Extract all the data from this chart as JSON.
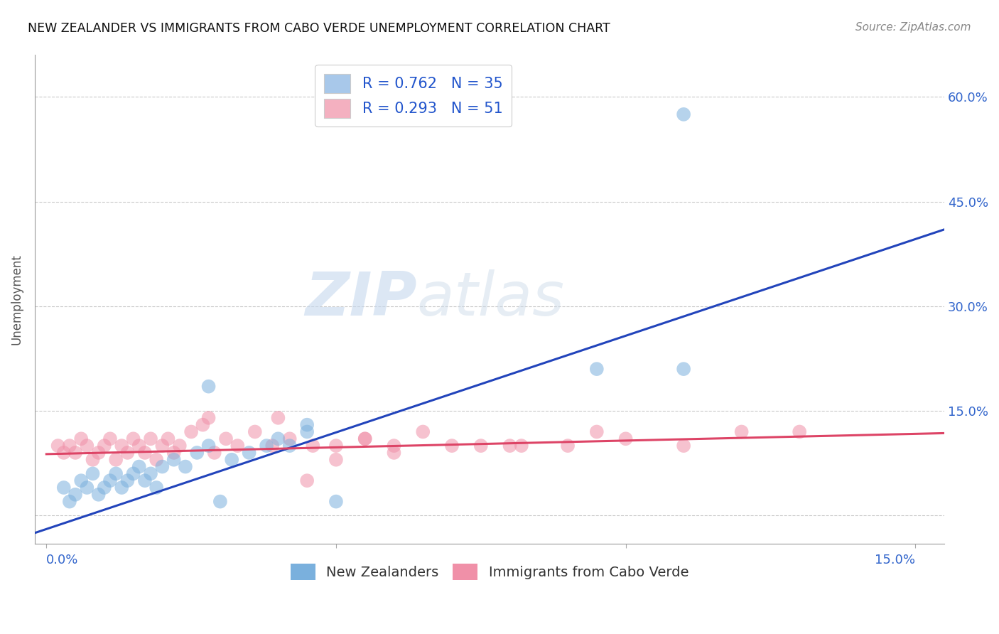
{
  "title": "NEW ZEALANDER VS IMMIGRANTS FROM CABO VERDE UNEMPLOYMENT CORRELATION CHART",
  "source": "Source: ZipAtlas.com",
  "ylabel": "Unemployment",
  "y_tick_labels": [
    "",
    "15.0%",
    "30.0%",
    "45.0%",
    "60.0%"
  ],
  "y_tick_vals": [
    0,
    0.15,
    0.3,
    0.45,
    0.6
  ],
  "xlim": [
    -0.002,
    0.155
  ],
  "ylim": [
    -0.04,
    0.66
  ],
  "watermark_zip": "ZIP",
  "watermark_atlas": "atlas",
  "legend_label1": "R = 0.762   N = 35",
  "legend_label2": "R = 0.293   N = 51",
  "legend_color1": "#a8c8ea",
  "legend_color2": "#f4b0c0",
  "scatter_color1": "#7ab0dd",
  "scatter_color2": "#f090a8",
  "line_color1": "#2244bb",
  "line_color2": "#dd4466",
  "background_color": "#ffffff",
  "nz_x": [
    0.003,
    0.004,
    0.005,
    0.006,
    0.007,
    0.008,
    0.009,
    0.01,
    0.011,
    0.012,
    0.013,
    0.014,
    0.015,
    0.016,
    0.017,
    0.018,
    0.019,
    0.02,
    0.022,
    0.024,
    0.026,
    0.028,
    0.03,
    0.032,
    0.035,
    0.038,
    0.04,
    0.042,
    0.045,
    0.05,
    0.028,
    0.045,
    0.11,
    0.11,
    0.095
  ],
  "nz_y": [
    0.04,
    0.02,
    0.03,
    0.05,
    0.04,
    0.06,
    0.03,
    0.04,
    0.05,
    0.06,
    0.04,
    0.05,
    0.06,
    0.07,
    0.05,
    0.06,
    0.04,
    0.07,
    0.08,
    0.07,
    0.09,
    0.1,
    0.02,
    0.08,
    0.09,
    0.1,
    0.11,
    0.1,
    0.13,
    0.02,
    0.185,
    0.12,
    0.575,
    0.21,
    0.21
  ],
  "cv_x": [
    0.002,
    0.003,
    0.004,
    0.005,
    0.006,
    0.007,
    0.008,
    0.009,
    0.01,
    0.011,
    0.012,
    0.013,
    0.014,
    0.015,
    0.016,
    0.017,
    0.018,
    0.019,
    0.02,
    0.021,
    0.022,
    0.023,
    0.025,
    0.027,
    0.029,
    0.031,
    0.033,
    0.036,
    0.039,
    0.042,
    0.046,
    0.05,
    0.055,
    0.06,
    0.065,
    0.07,
    0.08,
    0.09,
    0.1,
    0.11,
    0.12,
    0.04,
    0.028,
    0.075,
    0.06,
    0.055,
    0.05,
    0.045,
    0.082,
    0.095,
    0.13
  ],
  "cv_y": [
    0.1,
    0.09,
    0.1,
    0.09,
    0.11,
    0.1,
    0.08,
    0.09,
    0.1,
    0.11,
    0.08,
    0.1,
    0.09,
    0.11,
    0.1,
    0.09,
    0.11,
    0.08,
    0.1,
    0.11,
    0.09,
    0.1,
    0.12,
    0.13,
    0.09,
    0.11,
    0.1,
    0.12,
    0.1,
    0.11,
    0.1,
    0.08,
    0.11,
    0.09,
    0.12,
    0.1,
    0.1,
    0.1,
    0.11,
    0.1,
    0.12,
    0.14,
    0.14,
    0.1,
    0.1,
    0.11,
    0.1,
    0.05,
    0.1,
    0.12,
    0.12
  ],
  "nz_line_x": [
    -0.002,
    0.155
  ],
  "nz_line_y": [
    -0.025,
    0.41
  ],
  "cv_line_x": [
    0.0,
    0.155
  ],
  "cv_line_y": [
    0.088,
    0.118
  ]
}
